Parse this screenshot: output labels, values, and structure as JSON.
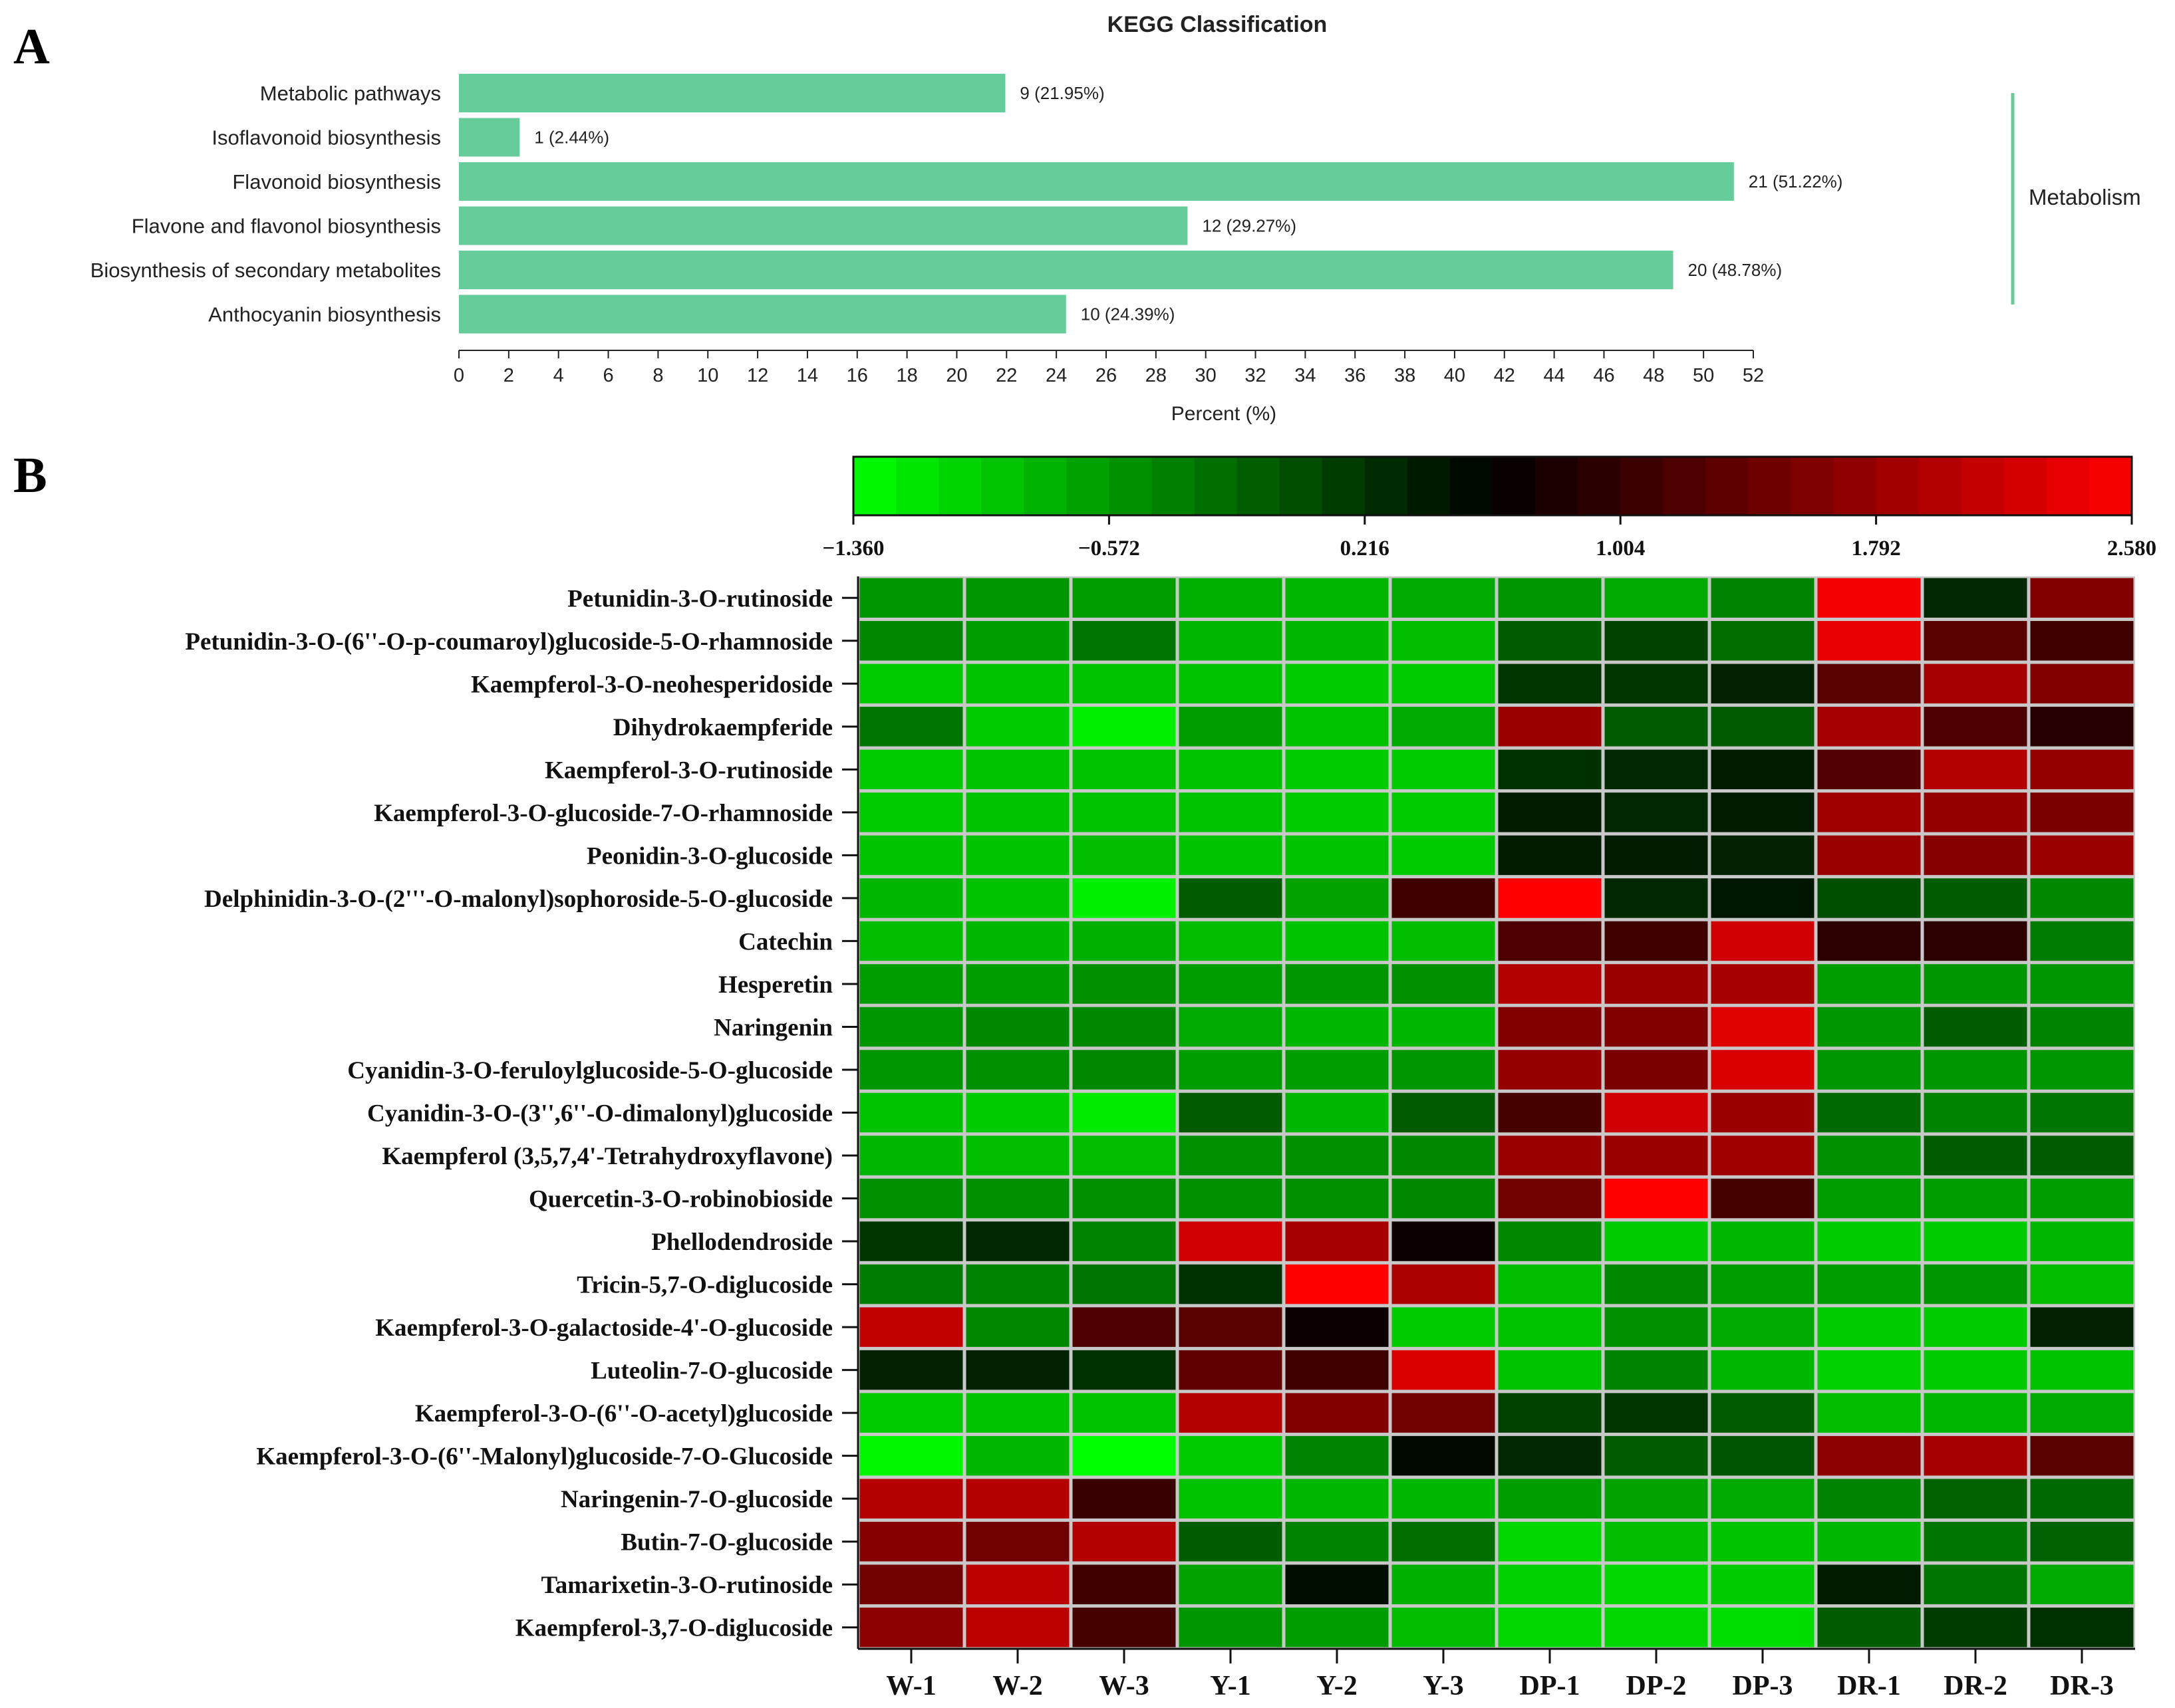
{
  "panel_a": {
    "letter": "A",
    "chart_data": {
      "type": "bar",
      "orientation": "horizontal",
      "title": "KEGG Classification",
      "xlabel": "Percent (%)",
      "ylabel": "",
      "xlim": [
        0,
        52
      ],
      "xticks": [
        0,
        2,
        4,
        6,
        8,
        10,
        12,
        14,
        16,
        18,
        20,
        22,
        24,
        26,
        28,
        30,
        32,
        34,
        36,
        38,
        40,
        42,
        44,
        46,
        48,
        50,
        52
      ],
      "categories": [
        "Metabolic pathways",
        "Isoflavonoid biosynthesis",
        "Flavonoid biosynthesis",
        "Flavone and flavonol biosynthesis",
        "Biosynthesis of secondary metabolites",
        "Anthocyanin biosynthesis"
      ],
      "values": [
        21.95,
        2.44,
        51.22,
        29.27,
        48.78,
        24.39
      ],
      "counts": [
        9,
        1,
        21,
        12,
        20,
        10
      ],
      "data_labels": [
        "9 (21.95%)",
        "1 (2.44%)",
        "21 (51.22%)",
        "12 (29.27%)",
        "20 (48.78%)",
        "10 (24.39%)"
      ],
      "group_label": "Metabolism",
      "bar_color": "#66cc99",
      "grid": false
    }
  },
  "panel_b": {
    "letter": "B",
    "chart_data": {
      "type": "heatmap",
      "rows": [
        "Petunidin-3-O-rutinoside",
        "Petunidin-3-O-(6''-O-p-coumaroyl)glucoside-5-O-rhamnoside",
        "Kaempferol-3-O-neohesperidoside",
        "Dihydrokaempferide",
        "Kaempferol-3-O-rutinoside",
        "Kaempferol-3-O-glucoside-7-O-rhamnoside",
        "Peonidin-3-O-glucoside",
        "Delphinidin-3-O-(2'''-O-malonyl)sophoroside-5-O-glucoside",
        "Catechin",
        "Hesperetin",
        "Naringenin",
        "Cyanidin-3-O-feruloylglucoside-5-O-glucoside",
        "Cyanidin-3-O-(3'',6''-O-dimalonyl)glucoside",
        "Kaempferol (3,5,7,4'-Tetrahydroxyflavone)",
        "Quercetin-3-O-robinobioside",
        "Phellodendroside",
        "Tricin-5,7-O-diglucoside",
        "Kaempferol-3-O-galactoside-4'-O-glucoside",
        "Luteolin-7-O-glucoside",
        "Kaempferol-3-O-(6''-O-acetyl)glucoside",
        "Kaempferol-3-O-(6''-Malonyl)glucoside-7-O-Glucoside",
        "Naringenin-7-O-glucoside",
        "Butin-7-O-glucoside",
        "Tamarixetin-3-O-rutinoside",
        "Kaempferol-3,7-O-diglucoside"
      ],
      "columns": [
        "W-1",
        "W-2",
        "W-3",
        "Y-1",
        "Y-2",
        "Y-3",
        "DP-1",
        "DP-2",
        "DP-3",
        "DR-1",
        "DR-2",
        "DR-3"
      ],
      "values": [
        [
          -0.55,
          -0.55,
          -0.6,
          -0.75,
          -0.8,
          -0.7,
          -0.55,
          -0.7,
          -0.4,
          2.5,
          0.3,
          1.6
        ],
        [
          -0.45,
          -0.6,
          -0.3,
          -0.8,
          -0.8,
          -0.85,
          -0.1,
          0.1,
          -0.25,
          2.4,
          1.3,
          1.1
        ],
        [
          -0.95,
          -0.9,
          -0.9,
          -0.9,
          -0.95,
          -0.95,
          0.2,
          0.2,
          0.35,
          1.3,
          1.9,
          1.6
        ],
        [
          -0.3,
          -0.95,
          -1.25,
          -0.6,
          -0.9,
          -0.7,
          1.8,
          -0.1,
          -0.1,
          1.9,
          1.2,
          0.9
        ],
        [
          -0.95,
          -0.9,
          -0.9,
          -0.9,
          -0.95,
          -0.95,
          0.25,
          0.3,
          0.4,
          1.25,
          2.0,
          1.75
        ],
        [
          -0.95,
          -0.9,
          -0.9,
          -0.9,
          -0.95,
          -0.95,
          0.4,
          0.3,
          0.4,
          1.85,
          1.75,
          1.55
        ],
        [
          -0.9,
          -0.9,
          -0.85,
          -0.9,
          -0.9,
          -0.95,
          0.4,
          0.4,
          0.35,
          1.8,
          1.65,
          1.8
        ],
        [
          -0.8,
          -0.9,
          -1.25,
          -0.1,
          -0.65,
          1.1,
          2.58,
          0.3,
          0.45,
          0.0,
          -0.1,
          -0.45
        ],
        [
          -0.85,
          -0.8,
          -0.75,
          -0.85,
          -0.9,
          -0.85,
          1.2,
          1.1,
          2.2,
          0.95,
          0.95,
          -0.35
        ],
        [
          -0.6,
          -0.6,
          -0.5,
          -0.6,
          -0.55,
          -0.5,
          2.0,
          1.8,
          1.9,
          -0.6,
          -0.55,
          -0.55
        ],
        [
          -0.55,
          -0.45,
          -0.45,
          -0.7,
          -0.8,
          -0.8,
          1.6,
          1.6,
          2.35,
          -0.55,
          -0.1,
          -0.4
        ],
        [
          -0.55,
          -0.5,
          -0.45,
          -0.6,
          -0.6,
          -0.55,
          1.75,
          1.55,
          2.3,
          -0.55,
          -0.55,
          -0.55
        ],
        [
          -0.9,
          -0.95,
          -1.2,
          -0.1,
          -0.8,
          -0.1,
          1.15,
          2.2,
          1.8,
          -0.2,
          -0.4,
          -0.3
        ],
        [
          -0.8,
          -0.85,
          -0.85,
          -0.5,
          -0.5,
          -0.45,
          1.8,
          1.8,
          1.85,
          -0.5,
          -0.1,
          -0.1
        ],
        [
          -0.5,
          -0.5,
          -0.5,
          -0.5,
          -0.5,
          -0.45,
          1.5,
          2.58,
          1.15,
          -0.6,
          -0.6,
          -0.6
        ],
        [
          0.2,
          0.3,
          -0.4,
          2.2,
          1.9,
          0.7,
          -0.45,
          -0.95,
          -0.8,
          -0.95,
          -0.95,
          -0.8
        ],
        [
          -0.35,
          -0.4,
          -0.3,
          0.25,
          2.58,
          1.95,
          -0.85,
          -0.45,
          -0.6,
          -0.6,
          -0.55,
          -0.85
        ],
        [
          2.1,
          -0.45,
          1.2,
          1.3,
          0.7,
          -0.95,
          -0.9,
          -0.5,
          -0.7,
          -0.95,
          -0.95,
          0.35
        ],
        [
          0.35,
          0.35,
          0.25,
          1.35,
          1.1,
          2.3,
          -0.9,
          -0.4,
          -0.8,
          -1.0,
          -0.95,
          -0.9
        ],
        [
          -0.95,
          -0.9,
          -0.9,
          2.0,
          1.6,
          1.5,
          0.1,
          0.2,
          -0.1,
          -0.85,
          -0.8,
          -0.7
        ],
        [
          -1.3,
          -0.8,
          -1.36,
          -0.95,
          -0.4,
          0.55,
          0.3,
          -0.1,
          -0.05,
          1.7,
          1.9,
          1.3
        ],
        [
          2.0,
          2.0,
          1.05,
          -0.9,
          -0.8,
          -0.8,
          -0.6,
          -0.65,
          -0.7,
          -0.4,
          -0.15,
          -0.2
        ],
        [
          1.65,
          1.5,
          2.0,
          -0.1,
          -0.4,
          -0.25,
          -1.05,
          -0.85,
          -0.9,
          -0.8,
          -0.3,
          -0.15
        ],
        [
          1.5,
          2.05,
          1.1,
          -0.65,
          0.5,
          -0.75,
          -1.0,
          -1.05,
          -0.95,
          0.4,
          -0.3,
          -0.7
        ],
        [
          1.7,
          2.05,
          1.15,
          -0.55,
          -0.6,
          -0.85,
          -1.05,
          -1.05,
          -1.1,
          -0.1,
          0.15,
          0.25
        ]
      ],
      "colorbar": {
        "min": -1.36,
        "max": 2.58,
        "ticks": [
          "-1.360",
          "-0.572",
          "0.216",
          "1.004",
          "1.792",
          "2.580"
        ],
        "low_color": "#00ff00",
        "mid_color": "#000000",
        "high_color": "#ff0000",
        "mid_value": 0.61,
        "steps": 30
      },
      "grid_color": "#c8c8c8",
      "xlabel": "",
      "ylabel": ""
    }
  }
}
